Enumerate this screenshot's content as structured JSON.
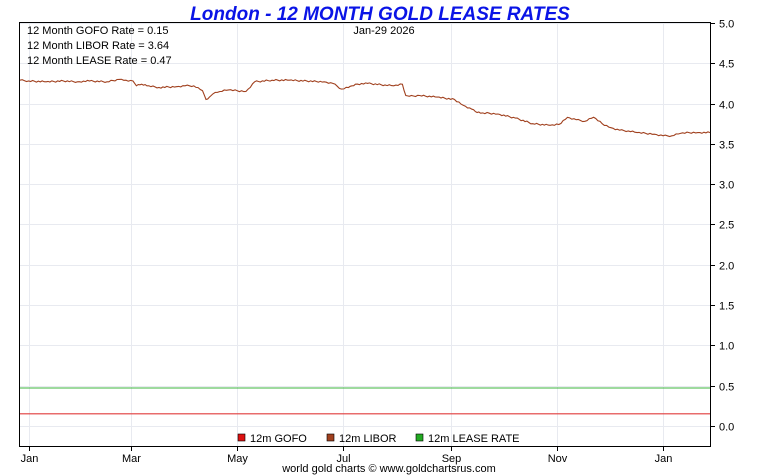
{
  "chart_data": {
    "type": "line",
    "title": "London - 12 MONTH GOLD LEASE RATES",
    "date_label": "Jan-29  2026",
    "readouts": [
      {
        "label": "12 Month GOFO Rate = 0.15"
      },
      {
        "label": "12 Month LIBOR Rate = 3.64"
      },
      {
        "label": "12 Month LEASE Rate = 0.47"
      }
    ],
    "xlabel": "",
    "ylabel": "",
    "x_ticks": [
      "Jan",
      "Mar",
      "May",
      "Jul",
      "Sep",
      "Nov",
      "Jan"
    ],
    "x_tick_day": [
      0,
      59,
      120,
      181,
      243,
      304,
      365
    ],
    "x_range": [
      -5,
      392
    ],
    "ylim": [
      -0.25,
      5.0
    ],
    "y_ticks": [
      "5.0",
      "4.5",
      "4.0",
      "3.5",
      "3.0",
      "2.5",
      "2.0",
      "1.5",
      "1.0",
      "0.5",
      "0.0"
    ],
    "y_tick_values": [
      5.0,
      4.5,
      4.0,
      3.5,
      3.0,
      2.5,
      2.0,
      1.5,
      1.0,
      0.5,
      0.0
    ],
    "grid": true,
    "series": [
      {
        "name": "12m GOFO",
        "color": "#e03c3c",
        "legend_color": "#dd1111",
        "x": [
          -5,
          392
        ],
        "values": [
          0.15,
          0.15
        ]
      },
      {
        "name": "12m LIBOR",
        "color": "#a0401e",
        "legend_color": "#a0401e",
        "x": [
          -5,
          0,
          10,
          20,
          28,
          35,
          45,
          52,
          56,
          60,
          62,
          65,
          68,
          75,
          85,
          90,
          95,
          100,
          102,
          104,
          106,
          110,
          115,
          120,
          125,
          130,
          140,
          150,
          160,
          170,
          175,
          180,
          184,
          186,
          188,
          195,
          205,
          210,
          215,
          217,
          219,
          225,
          235,
          245,
          250,
          255,
          257,
          260,
          265,
          270,
          280,
          290,
          300,
          305,
          310,
          315,
          320,
          325,
          330,
          335,
          340,
          345,
          350,
          355,
          360,
          365,
          370,
          375,
          380,
          385,
          392
        ],
        "values": [
          4.29,
          4.28,
          4.27,
          4.28,
          4.27,
          4.28,
          4.27,
          4.3,
          4.29,
          4.28,
          4.22,
          4.24,
          4.22,
          4.2,
          4.21,
          4.22,
          4.22,
          4.16,
          4.05,
          4.08,
          4.12,
          4.15,
          4.17,
          4.16,
          4.15,
          4.27,
          4.29,
          4.29,
          4.28,
          4.27,
          4.25,
          4.18,
          4.2,
          4.22,
          4.24,
          4.25,
          4.23,
          4.22,
          4.24,
          4.1,
          4.09,
          4.1,
          4.08,
          4.05,
          3.98,
          3.93,
          3.9,
          3.88,
          3.88,
          3.87,
          3.82,
          3.75,
          3.73,
          3.74,
          3.83,
          3.8,
          3.78,
          3.83,
          3.75,
          3.7,
          3.67,
          3.66,
          3.64,
          3.63,
          3.62,
          3.6,
          3.6,
          3.63,
          3.64,
          3.64,
          3.64
        ]
      },
      {
        "name": "12m LEASE RATE",
        "color": "#3cb43c",
        "legend_color": "#22aa22",
        "x": [
          -5,
          392
        ],
        "values": [
          0.47,
          0.47
        ]
      }
    ],
    "footer": "world gold charts © www.goldchartsrus.com"
  }
}
